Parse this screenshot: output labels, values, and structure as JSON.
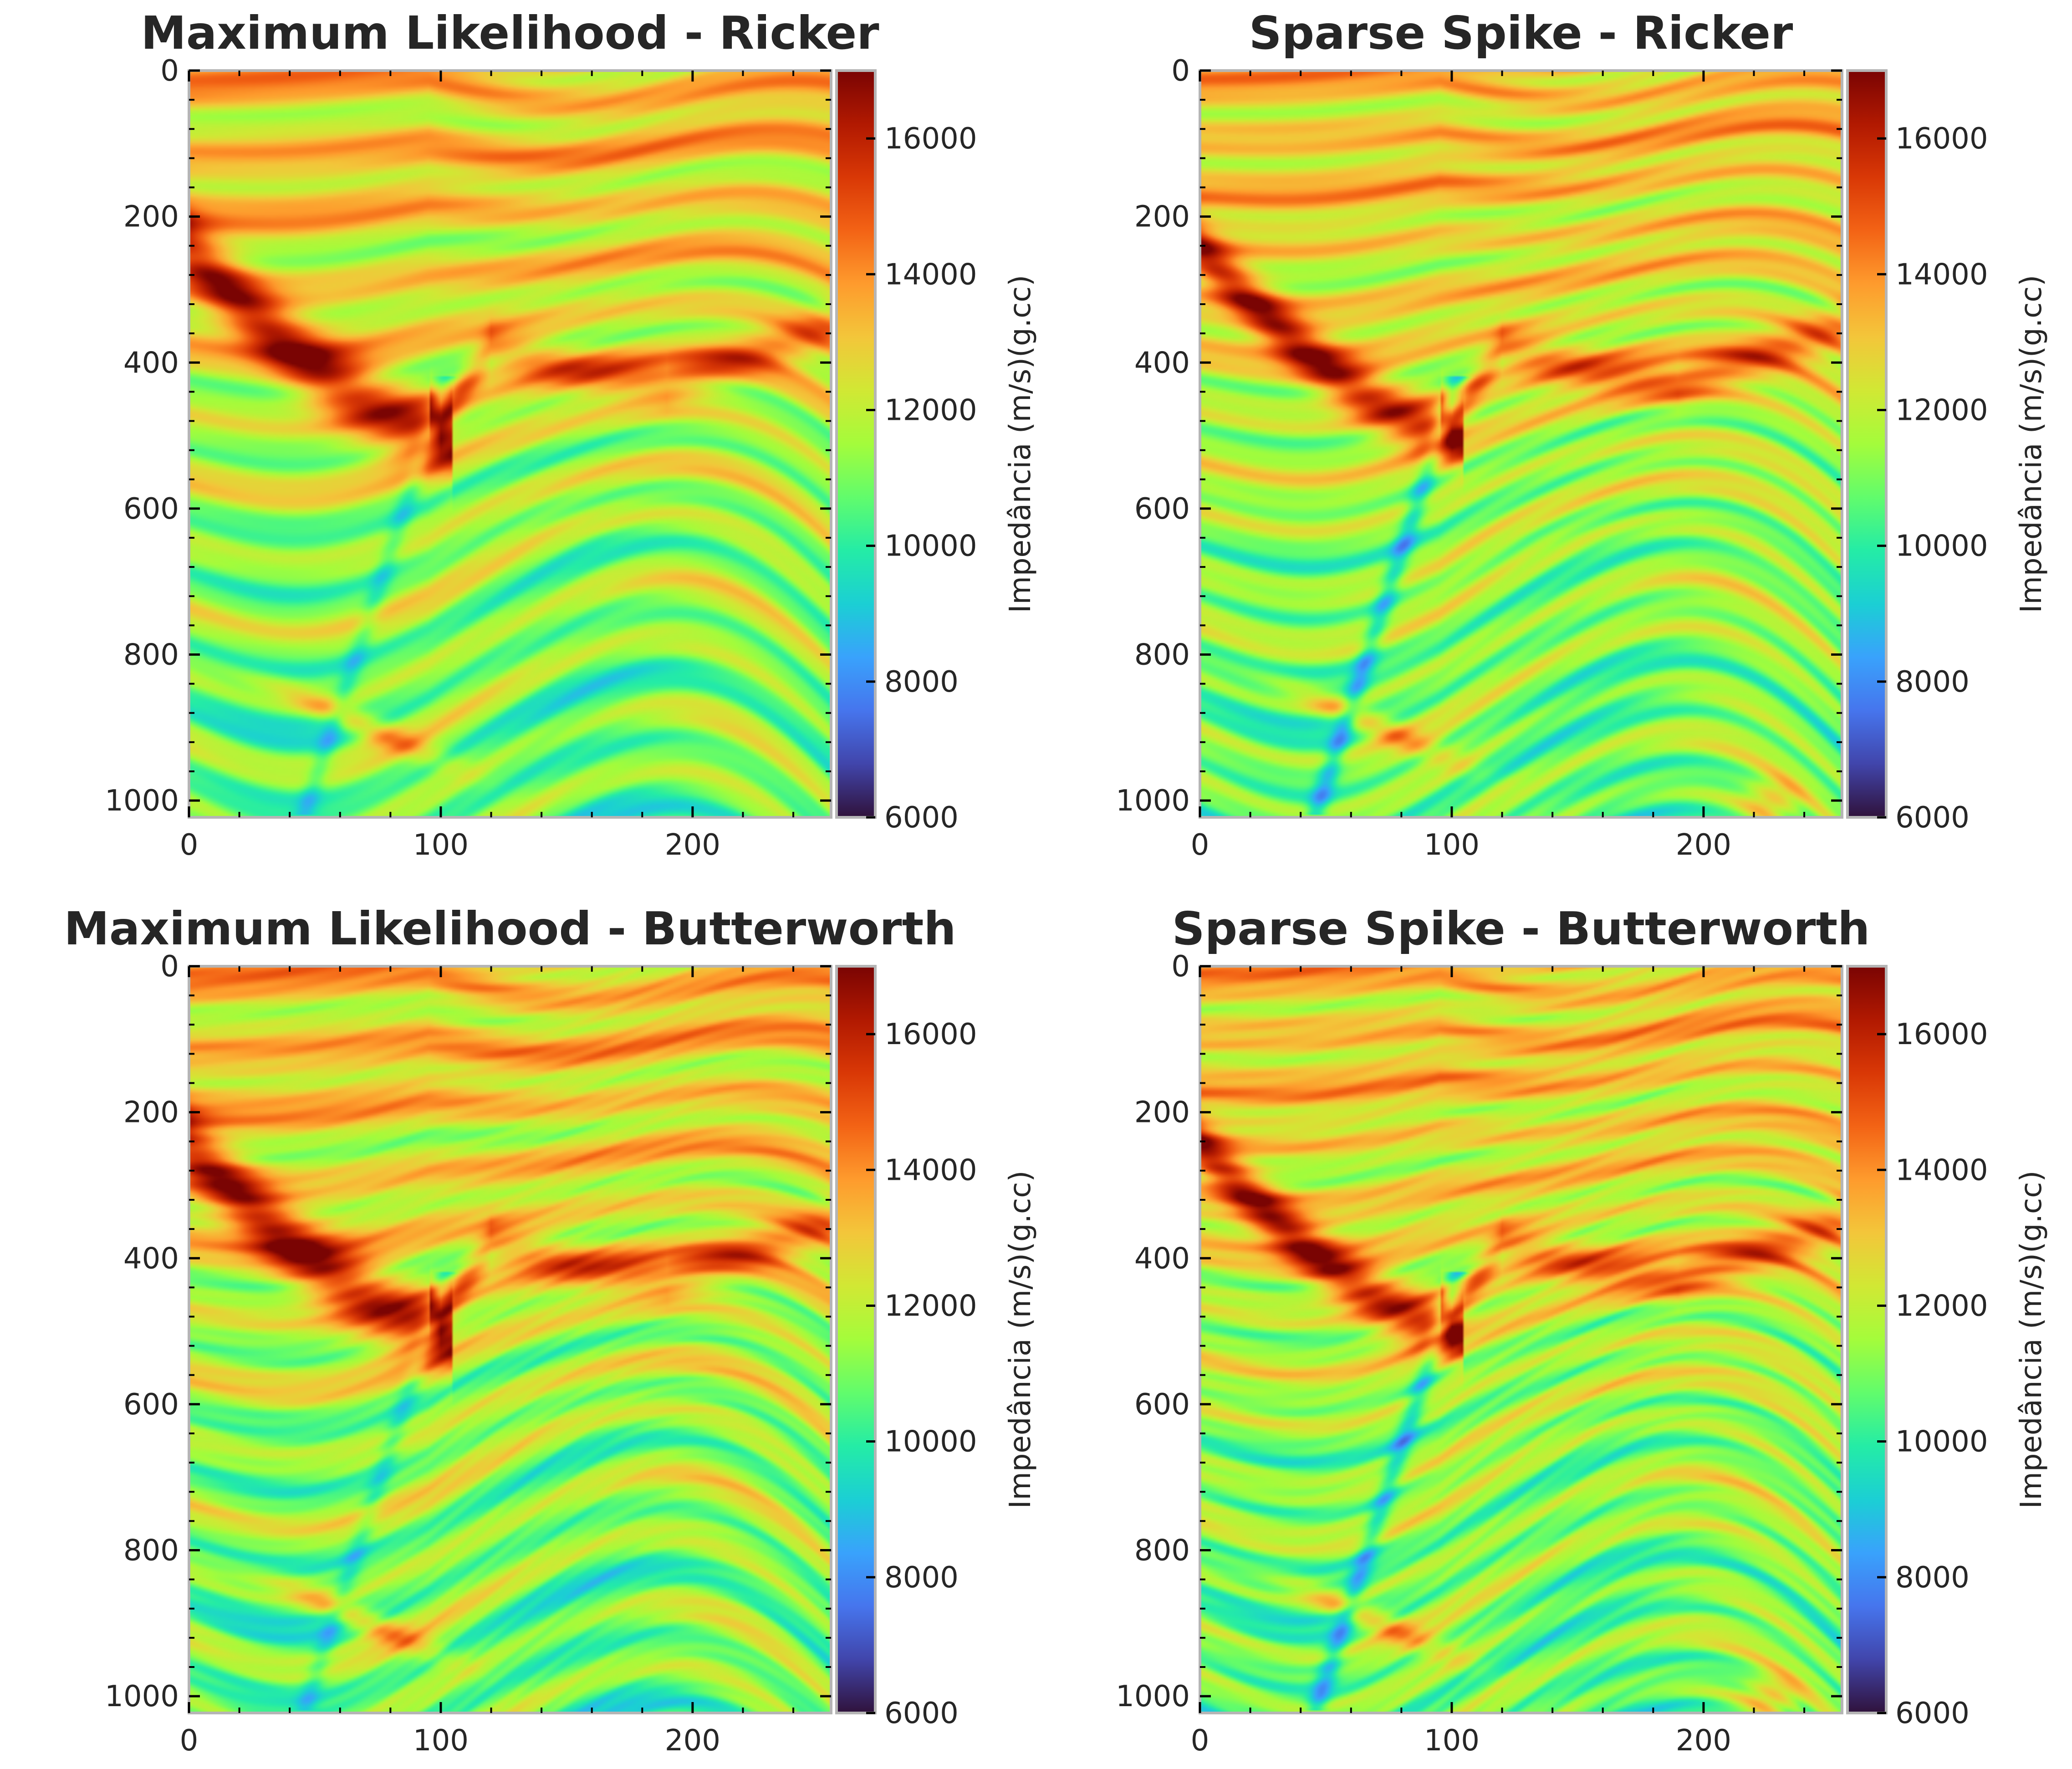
{
  "figure": {
    "colorbar_label": "Impedância (m/s)(g.cc)",
    "colormap": "turbo",
    "colormap_stops": [
      "#30123b",
      "#4145ab",
      "#4675ed",
      "#39a2fc",
      "#1bcfd4",
      "#24eca6",
      "#61fc6c",
      "#a4fc3b",
      "#d1e834",
      "#f3c63a",
      "#fe9b2d",
      "#f36315",
      "#d93806",
      "#b11901",
      "#7a0403"
    ],
    "colors": {
      "axis_frame": "#b5b5b5",
      "text": "#262626",
      "background": "#ffffff"
    }
  },
  "chart_data": [
    {
      "type": "heatmap",
      "title": "Maximum Likelihood - Ricker",
      "xlabel": "",
      "ylabel": "",
      "xlim": [
        0,
        255
      ],
      "ylim": [
        1023,
        0
      ],
      "x_ticks": [
        "0",
        "100",
        "200"
      ],
      "y_ticks": [
        "0",
        "200",
        "400",
        "600",
        "800",
        "1000"
      ],
      "colorbar": {
        "label": "Impedância (m/s)(g.cc)",
        "range": [
          6000,
          17000
        ],
        "ticks": [
          "6000",
          "8000",
          "10000",
          "12000",
          "14000",
          "16000"
        ]
      },
      "method": "maximum_likelihood",
      "wavelet": "ricker"
    },
    {
      "type": "heatmap",
      "title": "Sparse Spike - Ricker",
      "xlabel": "",
      "ylabel": "",
      "xlim": [
        0,
        255
      ],
      "ylim": [
        1023,
        0
      ],
      "x_ticks": [
        "0",
        "100",
        "200"
      ],
      "y_ticks": [
        "0",
        "200",
        "400",
        "600",
        "800",
        "1000"
      ],
      "colorbar": {
        "label": "Impedância (m/s)(g.cc)",
        "range": [
          6000,
          17000
        ],
        "ticks": [
          "6000",
          "8000",
          "10000",
          "12000",
          "14000",
          "16000"
        ]
      },
      "method": "sparse_spike",
      "wavelet": "ricker"
    },
    {
      "type": "heatmap",
      "title": "Maximum Likelihood - Butterworth",
      "xlabel": "",
      "ylabel": "",
      "xlim": [
        0,
        255
      ],
      "ylim": [
        1023,
        0
      ],
      "x_ticks": [
        "0",
        "100",
        "200"
      ],
      "y_ticks": [
        "0",
        "200",
        "400",
        "600",
        "800",
        "1000"
      ],
      "colorbar": {
        "label": "Impedância (m/s)(g.cc)",
        "range": [
          6000,
          17000
        ],
        "ticks": [
          "6000",
          "8000",
          "10000",
          "12000",
          "14000",
          "16000"
        ]
      },
      "method": "maximum_likelihood",
      "wavelet": "butterworth"
    },
    {
      "type": "heatmap",
      "title": "Sparse Spike - Butterworth",
      "xlabel": "",
      "ylabel": "",
      "xlim": [
        0,
        255
      ],
      "ylim": [
        1023,
        0
      ],
      "x_ticks": [
        "0",
        "100",
        "200"
      ],
      "y_ticks": [
        "0",
        "200",
        "400",
        "600",
        "800",
        "1000"
      ],
      "colorbar": {
        "label": "Impedância (m/s)(g.cc)",
        "range": [
          6000,
          17000
        ],
        "ticks": [
          "6000",
          "8000",
          "10000",
          "12000",
          "14000",
          "16000"
        ]
      },
      "method": "sparse_spike",
      "wavelet": "butterworth"
    }
  ]
}
